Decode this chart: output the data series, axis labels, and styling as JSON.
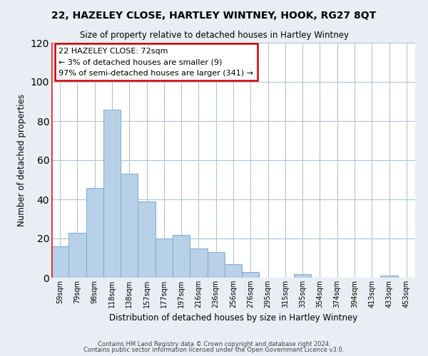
{
  "title": "22, HAZELEY CLOSE, HARTLEY WINTNEY, HOOK, RG27 8QT",
  "subtitle": "Size of property relative to detached houses in Hartley Wintney",
  "xlabel": "Distribution of detached houses by size in Hartley Wintney",
  "ylabel": "Number of detached properties",
  "bin_labels": [
    "59sqm",
    "79sqm",
    "98sqm",
    "118sqm",
    "138sqm",
    "157sqm",
    "177sqm",
    "197sqm",
    "216sqm",
    "236sqm",
    "256sqm",
    "276sqm",
    "295sqm",
    "315sqm",
    "335sqm",
    "354sqm",
    "374sqm",
    "394sqm",
    "413sqm",
    "433sqm",
    "453sqm"
  ],
  "bar_heights": [
    16,
    23,
    46,
    86,
    53,
    39,
    20,
    22,
    15,
    13,
    7,
    3,
    0,
    0,
    2,
    0,
    0,
    0,
    0,
    1,
    0
  ],
  "bar_color": "#b8d0e8",
  "bar_edge_color": "#7aadd0",
  "highlight_bar_color": "#dd2222",
  "highlight_bar_index": 0,
  "ylim": [
    0,
    120
  ],
  "yticks": [
    0,
    20,
    40,
    60,
    80,
    100,
    120
  ],
  "annotation_title": "22 HAZELEY CLOSE: 72sqm",
  "annotation_line1": "← 3% of detached houses are smaller (9)",
  "annotation_line2": "97% of semi-detached houses are larger (341) →",
  "annotation_box_facecolor": "#ffffff",
  "annotation_box_edgecolor": "#cc0000",
  "footer_line1": "Contains HM Land Registry data © Crown copyright and database right 2024.",
  "footer_line2": "Contains public sector information licensed under the Open Government Licence v3.0.",
  "background_color": "#e8eef4",
  "plot_bg_color": "#ffffff",
  "grid_color": "#b0c4d8"
}
